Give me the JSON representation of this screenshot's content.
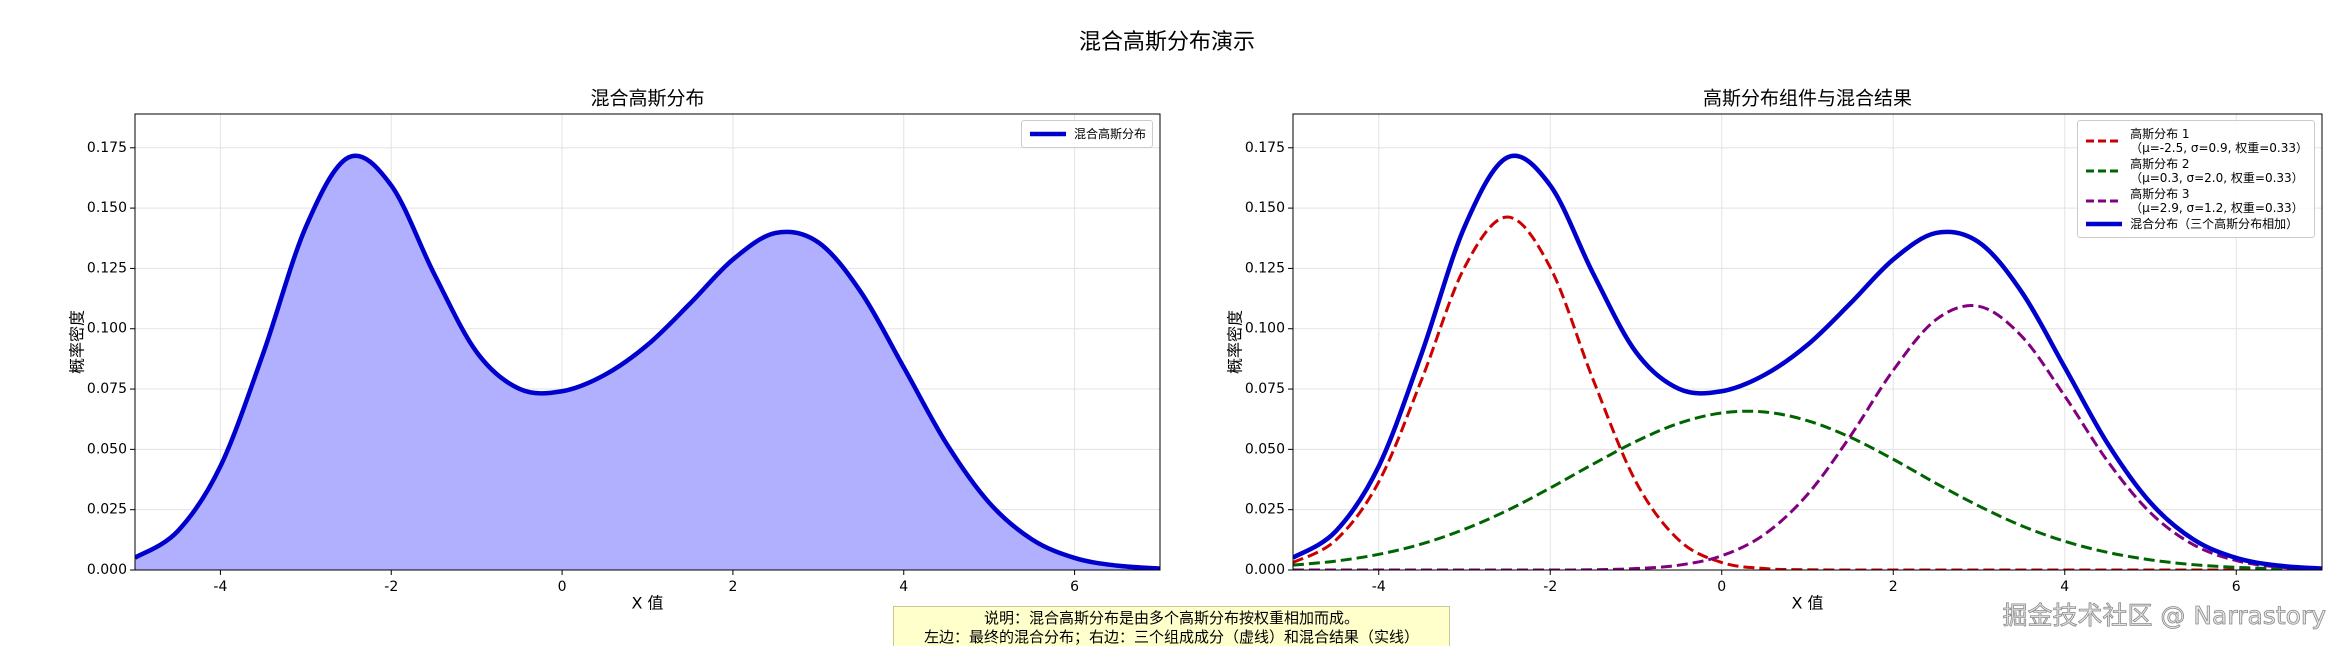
{
  "title": "混合高斯分布演示",
  "chart_data": [
    {
      "type": "area",
      "title": "混合高斯分布",
      "xlabel": "X 值",
      "ylabel": "概率密度",
      "x": [
        -5,
        -4.5,
        -4,
        -3.5,
        -3,
        -2.5,
        -2,
        -1.5,
        -1,
        -0.5,
        0,
        0.5,
        1,
        1.5,
        2,
        2.5,
        3,
        3.5,
        4,
        4.5,
        5,
        5.5,
        6,
        6.5,
        7
      ],
      "series": [
        {
          "name": "混合高斯分布",
          "color": "#0000cd",
          "fill": "#b0b0ff",
          "linestyle": "solid",
          "values": [
            0.0051,
            0.0161,
            0.043,
            0.0897,
            0.1422,
            0.171,
            0.1594,
            0.1229,
            0.0903,
            0.0751,
            0.0741,
            0.0809,
            0.0933,
            0.1105,
            0.1287,
            0.1397,
            0.1358,
            0.1151,
            0.084,
            0.0524,
            0.0279,
            0.0127,
            0.005,
            0.0018,
            0.0006
          ]
        }
      ],
      "xlim": [
        -5,
        7
      ],
      "xticks": [
        -4,
        -2,
        0,
        2,
        4,
        6
      ],
      "ylim": [
        0,
        0.189
      ],
      "yticks": [
        {
          "value": 0,
          "label": "0.000"
        },
        {
          "value": 0.025,
          "label": "0.025"
        },
        {
          "value": 0.05,
          "label": "0.050"
        },
        {
          "value": 0.075,
          "label": "0.075"
        },
        {
          "value": 0.1,
          "label": "0.100"
        },
        {
          "value": 0.125,
          "label": "0.125"
        },
        {
          "value": 0.15,
          "label": "0.150"
        },
        {
          "value": 0.175,
          "label": "0.175"
        }
      ],
      "grid": true,
      "legend": "upper right"
    },
    {
      "type": "line",
      "title": "高斯分布组件与混合结果",
      "xlabel": "X 值",
      "ylabel": "概率密度",
      "x": [
        -5,
        -4.5,
        -4,
        -3.5,
        -3,
        -2.5,
        -2,
        -1.5,
        -1,
        -0.5,
        0,
        0.5,
        1,
        1.5,
        2,
        2.5,
        3,
        3.5,
        4,
        4.5,
        5,
        5.5,
        6,
        6.5,
        7
      ],
      "series": [
        {
          "name": "高斯分布 1\n（μ=-2.5, σ=0.9, 权重=0.33）",
          "color": "#cc0000",
          "linestyle": "dashed",
          "values": [
            0.0031,
            0.0124,
            0.0365,
            0.0789,
            0.1254,
            0.1463,
            0.1254,
            0.0789,
            0.0365,
            0.0124,
            0.0031,
            0.0006,
            0.0001,
            0,
            0,
            0,
            0,
            0,
            0,
            0,
            0,
            0,
            0,
            0,
            0
          ]
        },
        {
          "name": "高斯分布 2\n（μ=0.3, σ=2.0, 权重=0.33）",
          "color": "#006400",
          "linestyle": "dashed",
          "values": [
            0.002,
            0.0037,
            0.0065,
            0.0108,
            0.0169,
            0.0247,
            0.034,
            0.0439,
            0.0533,
            0.0608,
            0.0651,
            0.0655,
            0.0619,
            0.055,
            0.0459,
            0.0359,
            0.0265,
            0.0183,
            0.0119,
            0.0073,
            0.0042,
            0.0022,
            0.0011,
            0.0005,
            0.0002
          ]
        },
        {
          "name": "高斯分布 3\n（μ=2.9, σ=1.2, 权重=0.33）",
          "color": "#800080",
          "linestyle": "dashed",
          "values": [
            0,
            0,
            0,
            0,
            0,
            0,
            0,
            0.0001,
            0.0006,
            0.002,
            0.0059,
            0.0148,
            0.0313,
            0.0555,
            0.0828,
            0.1038,
            0.1093,
            0.0968,
            0.0721,
            0.0451,
            0.0237,
            0.0105,
            0.0039,
            0.0012,
            0.0003
          ]
        },
        {
          "name": "混合分布（三个高斯分布相加）",
          "color": "#0000cd",
          "linestyle": "solid",
          "values": [
            0.0051,
            0.0161,
            0.043,
            0.0897,
            0.1422,
            0.171,
            0.1594,
            0.1229,
            0.0903,
            0.0751,
            0.0741,
            0.0809,
            0.0933,
            0.1105,
            0.1287,
            0.1397,
            0.1358,
            0.1151,
            0.084,
            0.0524,
            0.0279,
            0.0127,
            0.005,
            0.0018,
            0.0006
          ]
        }
      ],
      "xlim": [
        -5,
        7
      ],
      "xticks": [
        -4,
        -2,
        0,
        2,
        4,
        6
      ],
      "ylim": [
        0,
        0.189
      ],
      "yticks": [
        {
          "value": 0,
          "label": "0.000"
        },
        {
          "value": 0.025,
          "label": "0.025"
        },
        {
          "value": 0.05,
          "label": "0.050"
        },
        {
          "value": 0.075,
          "label": "0.075"
        },
        {
          "value": 0.1,
          "label": "0.100"
        },
        {
          "value": 0.125,
          "label": "0.125"
        },
        {
          "value": 0.15,
          "label": "0.150"
        },
        {
          "value": 0.175,
          "label": "0.175"
        }
      ],
      "grid": true,
      "legend": "upper right"
    }
  ],
  "note": [
    "说明：混合高斯分布是由多个高斯分布按权重相加而成。",
    "左边：最终的混合分布；右边：三个组成成分（虚线）和混合结果（实线）"
  ],
  "watermark": "掘金技术社区 @ Narrastory"
}
